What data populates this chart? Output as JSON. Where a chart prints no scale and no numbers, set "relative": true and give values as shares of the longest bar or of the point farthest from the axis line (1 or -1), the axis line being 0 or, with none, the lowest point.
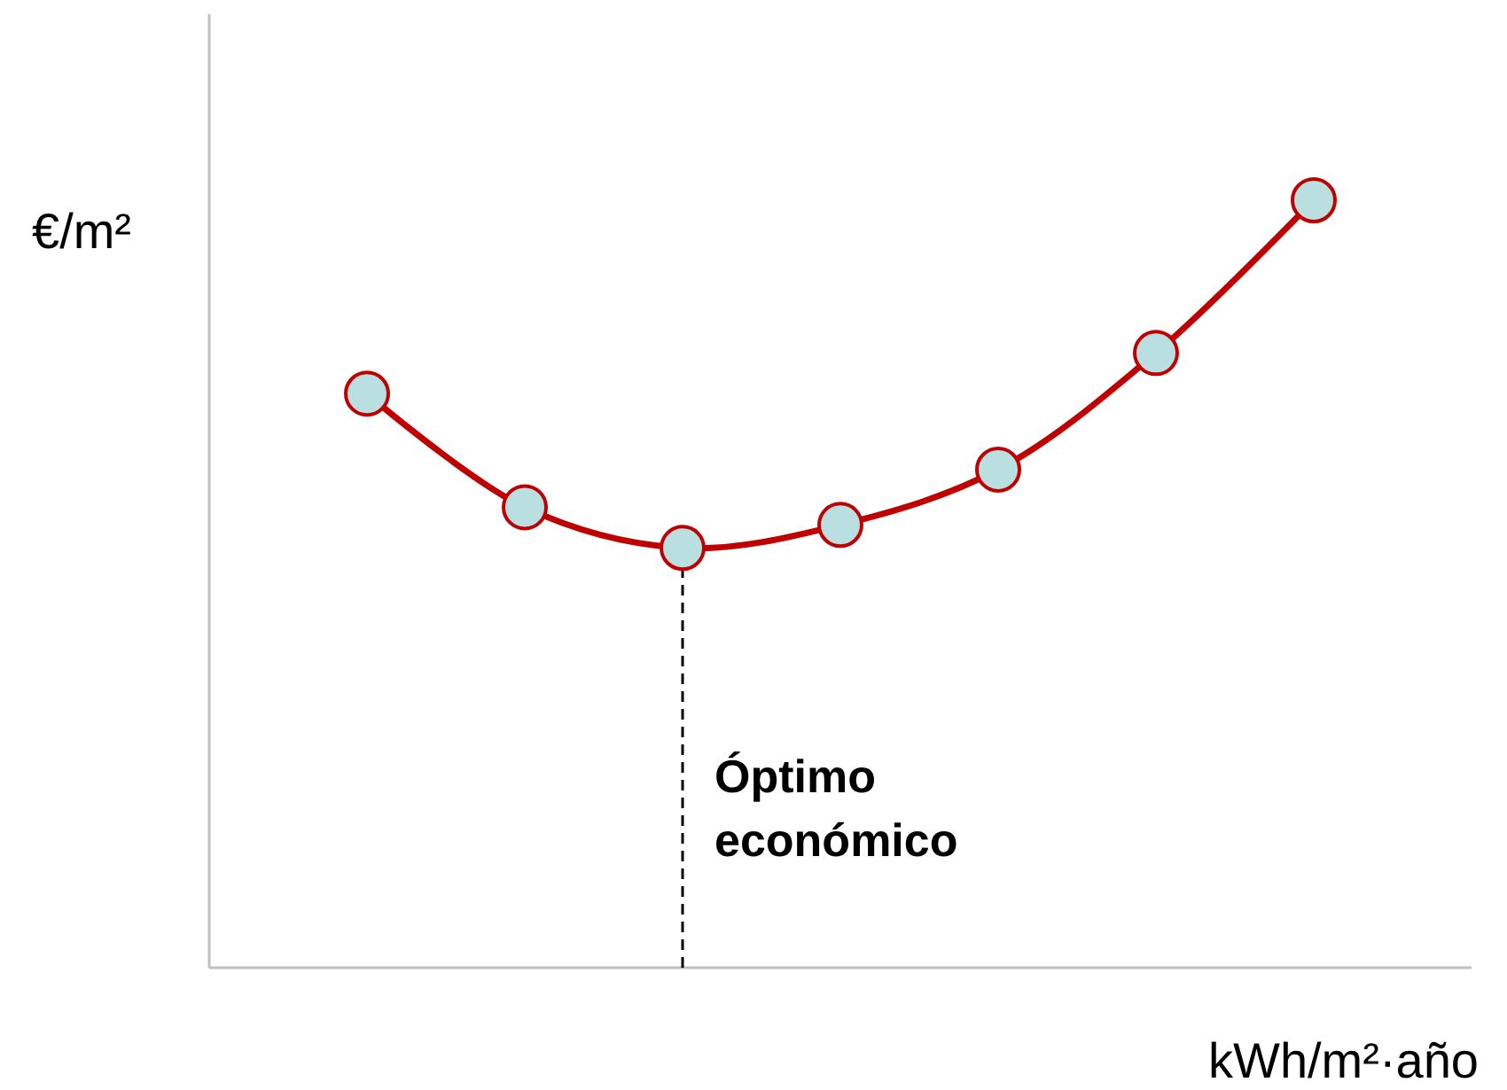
{
  "chart_data": {
    "type": "line",
    "relative": true,
    "xlabel": "kWh/m²·año",
    "ylabel": "€/m²",
    "categories": [
      null,
      null,
      null,
      null,
      null,
      null,
      null
    ],
    "series": [
      {
        "color": "#c00000",
        "values": [
          0.748,
          0.6,
          0.547,
          0.577,
          0.649,
          0.801,
          1
        ]
      }
    ],
    "marker": "circle",
    "line_style": "solid",
    "annotations": [
      "Óptimo económico"
    ]
  }
}
